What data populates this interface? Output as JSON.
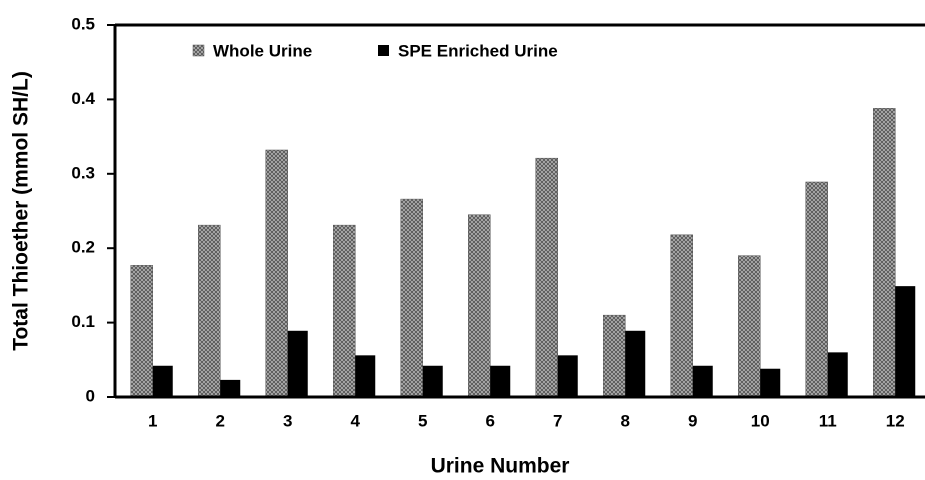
{
  "chart_data": {
    "type": "bar",
    "x_label": "Urine Number",
    "y_label": "Total Thioether (mmol SH/L)",
    "categories": [
      "1",
      "2",
      "3",
      "4",
      "5",
      "6",
      "7",
      "8",
      "9",
      "10",
      "11",
      "12"
    ],
    "series": [
      {
        "name": "Whole Urine",
        "color": "#b0b0b0",
        "pattern": "crosshatch",
        "values": [
          0.177,
          0.231,
          0.332,
          0.231,
          0.266,
          0.245,
          0.321,
          0.11,
          0.218,
          0.19,
          0.289,
          0.388
        ]
      },
      {
        "name": "SPE Enriched Urine",
        "color": "#000000",
        "values": [
          0.042,
          0.023,
          0.089,
          0.056,
          0.042,
          0.042,
          0.056,
          0.089,
          0.042,
          0.038,
          0.06,
          0.149
        ]
      }
    ],
    "ylim": [
      0,
      0.5
    ],
    "yticks": [
      0,
      0.1,
      0.2,
      0.3,
      0.4,
      0.5
    ],
    "grid": false,
    "legend": "top-left"
  }
}
